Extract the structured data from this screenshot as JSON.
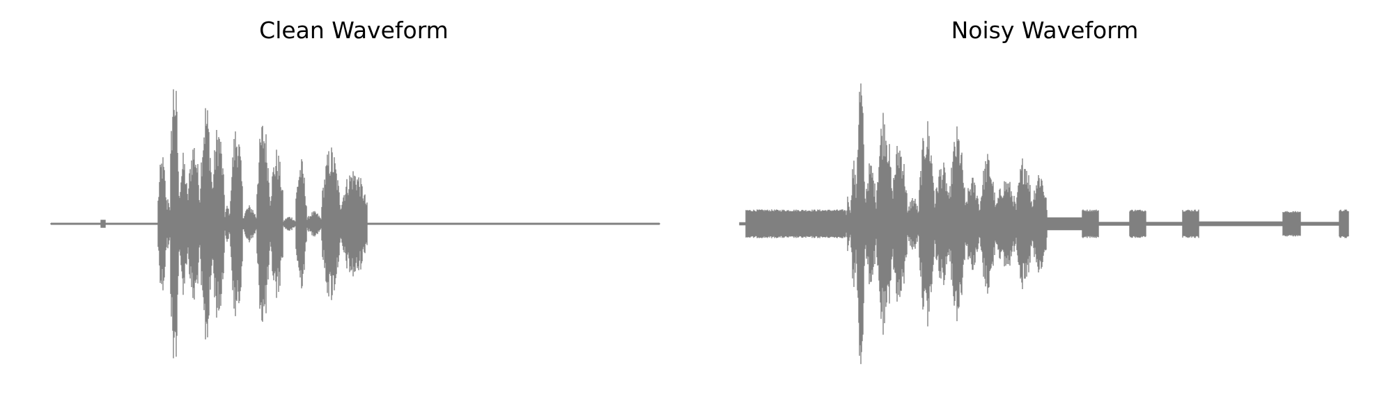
{
  "colors": {
    "waveform": "#808080",
    "background": "#ffffff"
  },
  "chart_data": [
    {
      "type": "line",
      "title": "Clean Waveform",
      "axes_visible": false,
      "grid": false,
      "ylim": [
        -1.0,
        1.0
      ],
      "xlim": [
        0,
        1
      ],
      "segments": [
        {
          "x0": 0.0,
          "x1": 0.082,
          "amp": 0.004,
          "kind": "silence"
        },
        {
          "x0": 0.082,
          "x1": 0.09,
          "amp": 0.025,
          "kind": "blip"
        },
        {
          "x0": 0.09,
          "x1": 0.176,
          "amp": 0.004,
          "kind": "silence"
        },
        {
          "x0": 0.176,
          "x1": 0.19,
          "amp": 0.45,
          "kind": "speech"
        },
        {
          "x0": 0.19,
          "x1": 0.196,
          "amp": 0.2,
          "kind": "speech"
        },
        {
          "x0": 0.196,
          "x1": 0.21,
          "amp": 1.0,
          "kind": "speech"
        },
        {
          "x0": 0.21,
          "x1": 0.225,
          "amp": 0.45,
          "kind": "speech"
        },
        {
          "x0": 0.225,
          "x1": 0.245,
          "amp": 0.55,
          "kind": "speech"
        },
        {
          "x0": 0.245,
          "x1": 0.265,
          "amp": 0.8,
          "kind": "speech"
        },
        {
          "x0": 0.265,
          "x1": 0.285,
          "amp": 0.65,
          "kind": "speech"
        },
        {
          "x0": 0.285,
          "x1": 0.295,
          "amp": 0.12,
          "kind": "speech"
        },
        {
          "x0": 0.295,
          "x1": 0.315,
          "amp": 0.65,
          "kind": "speech"
        },
        {
          "x0": 0.315,
          "x1": 0.338,
          "amp": 0.12,
          "kind": "speech"
        },
        {
          "x0": 0.338,
          "x1": 0.36,
          "amp": 0.68,
          "kind": "speech"
        },
        {
          "x0": 0.36,
          "x1": 0.382,
          "amp": 0.48,
          "kind": "speech"
        },
        {
          "x0": 0.382,
          "x1": 0.402,
          "amp": 0.05,
          "kind": "speech"
        },
        {
          "x0": 0.402,
          "x1": 0.42,
          "amp": 0.42,
          "kind": "speech"
        },
        {
          "x0": 0.42,
          "x1": 0.445,
          "amp": 0.08,
          "kind": "speech"
        },
        {
          "x0": 0.445,
          "x1": 0.475,
          "amp": 0.5,
          "kind": "speech"
        },
        {
          "x0": 0.475,
          "x1": 0.52,
          "amp": 0.36,
          "kind": "speech"
        },
        {
          "x0": 0.52,
          "x1": 1.0,
          "amp": 0.004,
          "kind": "silence"
        }
      ]
    },
    {
      "type": "line",
      "title": "Noisy Waveform",
      "axes_visible": false,
      "grid": false,
      "ylim": [
        -1.0,
        1.0
      ],
      "xlim": [
        0,
        1
      ],
      "segments": [
        {
          "x0": 0.0,
          "x1": 0.01,
          "amp": 0.01,
          "kind": "silence"
        },
        {
          "x0": 0.01,
          "x1": 0.175,
          "amp": 0.09,
          "kind": "noise"
        },
        {
          "x0": 0.175,
          "x1": 0.182,
          "amp": 0.2,
          "kind": "speech"
        },
        {
          "x0": 0.182,
          "x1": 0.192,
          "amp": 0.42,
          "kind": "speech"
        },
        {
          "x0": 0.192,
          "x1": 0.205,
          "amp": 1.0,
          "kind": "speech"
        },
        {
          "x0": 0.205,
          "x1": 0.225,
          "amp": 0.4,
          "kind": "speech"
        },
        {
          "x0": 0.225,
          "x1": 0.25,
          "amp": 0.76,
          "kind": "speech"
        },
        {
          "x0": 0.25,
          "x1": 0.275,
          "amp": 0.55,
          "kind": "speech"
        },
        {
          "x0": 0.275,
          "x1": 0.295,
          "amp": 0.18,
          "kind": "speech"
        },
        {
          "x0": 0.295,
          "x1": 0.32,
          "amp": 0.68,
          "kind": "speech"
        },
        {
          "x0": 0.32,
          "x1": 0.345,
          "amp": 0.4,
          "kind": "speech"
        },
        {
          "x0": 0.345,
          "x1": 0.37,
          "amp": 0.62,
          "kind": "speech"
        },
        {
          "x0": 0.37,
          "x1": 0.395,
          "amp": 0.3,
          "kind": "speech"
        },
        {
          "x0": 0.395,
          "x1": 0.42,
          "amp": 0.45,
          "kind": "speech"
        },
        {
          "x0": 0.42,
          "x1": 0.455,
          "amp": 0.3,
          "kind": "speech"
        },
        {
          "x0": 0.455,
          "x1": 0.48,
          "amp": 0.45,
          "kind": "speech"
        },
        {
          "x0": 0.48,
          "x1": 0.505,
          "amp": 0.36,
          "kind": "speech"
        },
        {
          "x0": 0.505,
          "x1": 0.562,
          "amp": 0.04,
          "kind": "silence"
        },
        {
          "x0": 0.562,
          "x1": 0.59,
          "amp": 0.09,
          "kind": "noise"
        },
        {
          "x0": 0.59,
          "x1": 0.64,
          "amp": 0.012,
          "kind": "silence"
        },
        {
          "x0": 0.64,
          "x1": 0.668,
          "amp": 0.09,
          "kind": "noise"
        },
        {
          "x0": 0.668,
          "x1": 0.727,
          "amp": 0.012,
          "kind": "silence"
        },
        {
          "x0": 0.727,
          "x1": 0.755,
          "amp": 0.09,
          "kind": "noise"
        },
        {
          "x0": 0.755,
          "x1": 0.892,
          "amp": 0.015,
          "kind": "silence"
        },
        {
          "x0": 0.892,
          "x1": 0.922,
          "amp": 0.08,
          "kind": "noise"
        },
        {
          "x0": 0.922,
          "x1": 0.985,
          "amp": 0.012,
          "kind": "silence"
        },
        {
          "x0": 0.985,
          "x1": 1.0,
          "amp": 0.09,
          "kind": "noise"
        }
      ]
    }
  ]
}
